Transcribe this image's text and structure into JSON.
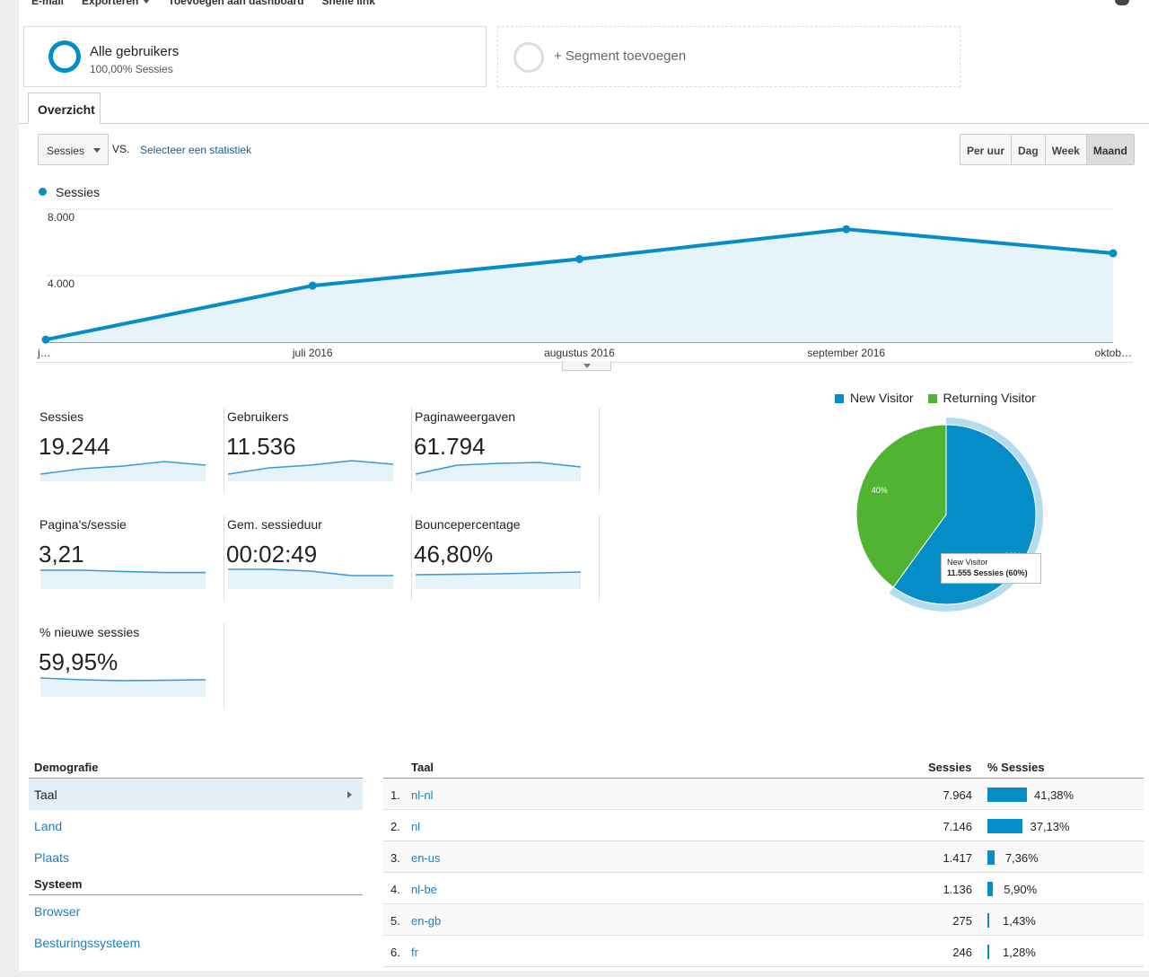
{
  "toolbar": {
    "items": [
      {
        "label": "E-mail",
        "dropdown": false
      },
      {
        "label": "Exporteren",
        "dropdown": true
      },
      {
        "label": "Toevoegen aan dashboard",
        "dropdown": false
      },
      {
        "label": "Snelle link",
        "dropdown": false
      }
    ],
    "icon": "comment-icon"
  },
  "segments": {
    "active": {
      "title": "Alle gebruikers",
      "subtitle": "100,00% Sessies"
    },
    "add_label": "+ Segment toevoegen"
  },
  "tabs": [
    {
      "label": "Overzicht",
      "active": true
    }
  ],
  "metric_controls": {
    "selected_metric": "Sessies",
    "vs_label": "VS.",
    "pick_label": "Selecteer een statistiek",
    "periods": [
      "Per uur",
      "Dag",
      "Week",
      "Maand"
    ],
    "active_period": "Maand"
  },
  "chart_data": [
    {
      "type": "area",
      "legend": [
        {
          "name": "Sessies",
          "color": "#058dc7"
        }
      ],
      "x": [
        "j…",
        "juli 2016",
        "augustus 2016",
        "september 2016",
        "oktob…"
      ],
      "series": [
        {
          "name": "Sessies",
          "values": [
            150,
            3400,
            5000,
            6800,
            5350
          ]
        }
      ],
      "ylim": [
        0,
        8000
      ],
      "yticks": [
        {
          "value": 8000,
          "label": "8.000"
        },
        {
          "value": 4000,
          "label": "4.000"
        }
      ],
      "grid": true
    },
    {
      "type": "pie",
      "legend_position": "top",
      "slices": [
        {
          "name": "New Visitor",
          "value": 60,
          "label": "60%",
          "color": "#058dc7"
        },
        {
          "name": "Returning Visitor",
          "value": 40,
          "label": "40%",
          "color": "#50b432"
        }
      ],
      "tooltip": {
        "title": "New Visitor",
        "detail": "11.555 Sessies (60%)"
      }
    }
  ],
  "scorecards": [
    {
      "label": "Sessies",
      "value": "19.244",
      "spark": [
        0.2,
        0.5,
        0.65,
        0.9,
        0.7
      ]
    },
    {
      "label": "Gebruikers",
      "value": "11.536",
      "spark": [
        0.2,
        0.55,
        0.7,
        0.95,
        0.75
      ]
    },
    {
      "label": "Paginaweergaven",
      "value": "61.794",
      "spark": [
        0.2,
        0.7,
        0.8,
        0.85,
        0.6
      ]
    },
    {
      "label": "Pagina's/sessie",
      "value": "3,21",
      "spark": [
        0.85,
        0.85,
        0.78,
        0.72,
        0.72
      ]
    },
    {
      "label": "Gem. sessieduur",
      "value": "00:02:49",
      "spark": [
        0.9,
        0.9,
        0.8,
        0.55,
        0.55
      ]
    },
    {
      "label": "Bouncepercentage",
      "value": "46,80%",
      "spark": [
        0.6,
        0.62,
        0.65,
        0.7,
        0.75
      ]
    },
    {
      "label": "% nieuwe sessies",
      "value": "59,95%",
      "spark": [
        0.85,
        0.75,
        0.7,
        0.72,
        0.75
      ]
    }
  ],
  "demographics": {
    "sections": [
      {
        "heading": "Demografie",
        "items": [
          {
            "label": "Taal",
            "active": true
          },
          {
            "label": "Land",
            "active": false
          },
          {
            "label": "Plaats",
            "active": false
          }
        ]
      },
      {
        "heading": "Systeem",
        "items": [
          {
            "label": "Browser",
            "active": false
          },
          {
            "label": "Besturingssysteem",
            "active": false
          }
        ]
      }
    ]
  },
  "language_table": {
    "headers": {
      "dimension": "Taal",
      "sessions": "Sessies",
      "pct": "% Sessies"
    },
    "rows": [
      {
        "rank": "1.",
        "lang": "nl-nl",
        "sessions": "7.964",
        "pct_label": "41,38%",
        "pct": 41.38
      },
      {
        "rank": "2.",
        "lang": "nl",
        "sessions": "7.146",
        "pct_label": "37,13%",
        "pct": 37.13
      },
      {
        "rank": "3.",
        "lang": "en-us",
        "sessions": "1.417",
        "pct_label": "7,36%",
        "pct": 7.36
      },
      {
        "rank": "4.",
        "lang": "nl-be",
        "sessions": "1.136",
        "pct_label": "5,90%",
        "pct": 5.9
      },
      {
        "rank": "5.",
        "lang": "en-gb",
        "sessions": "275",
        "pct_label": "1,43%",
        "pct": 1.43
      },
      {
        "rank": "6.",
        "lang": "fr",
        "sessions": "246",
        "pct_label": "1,28%",
        "pct": 1.28
      }
    ]
  }
}
